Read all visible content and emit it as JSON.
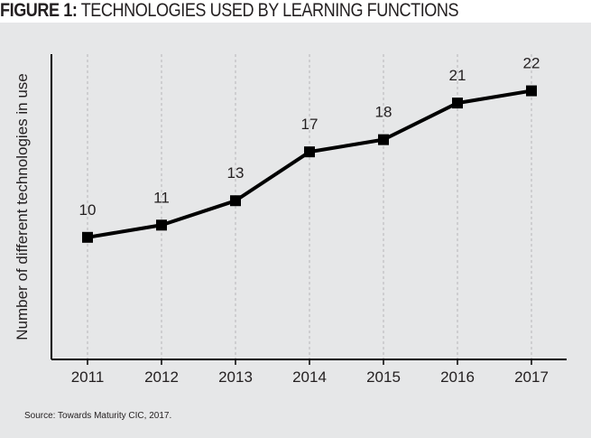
{
  "chart_data": {
    "type": "line",
    "title_bold": "FIGURE 1:",
    "title": "TECHNOLOGIES USED BY LEARNING FUNCTIONS",
    "xlabel": "",
    "ylabel": "Number of different technologies in use",
    "categories": [
      "2011",
      "2012",
      "2013",
      "2014",
      "2015",
      "2016",
      "2017"
    ],
    "values": [
      10,
      11,
      13,
      17,
      18,
      21,
      22
    ],
    "data_labels": [
      "10",
      "11",
      "13",
      "17",
      "18",
      "21",
      "22"
    ],
    "ylim": [
      0,
      25
    ],
    "grid": "vertical dashed",
    "y_ticks_shown": false,
    "line_color": "#000000",
    "background_color": "#e6e7e8"
  },
  "source": "Source: Towards Maturity CIC, 2017."
}
